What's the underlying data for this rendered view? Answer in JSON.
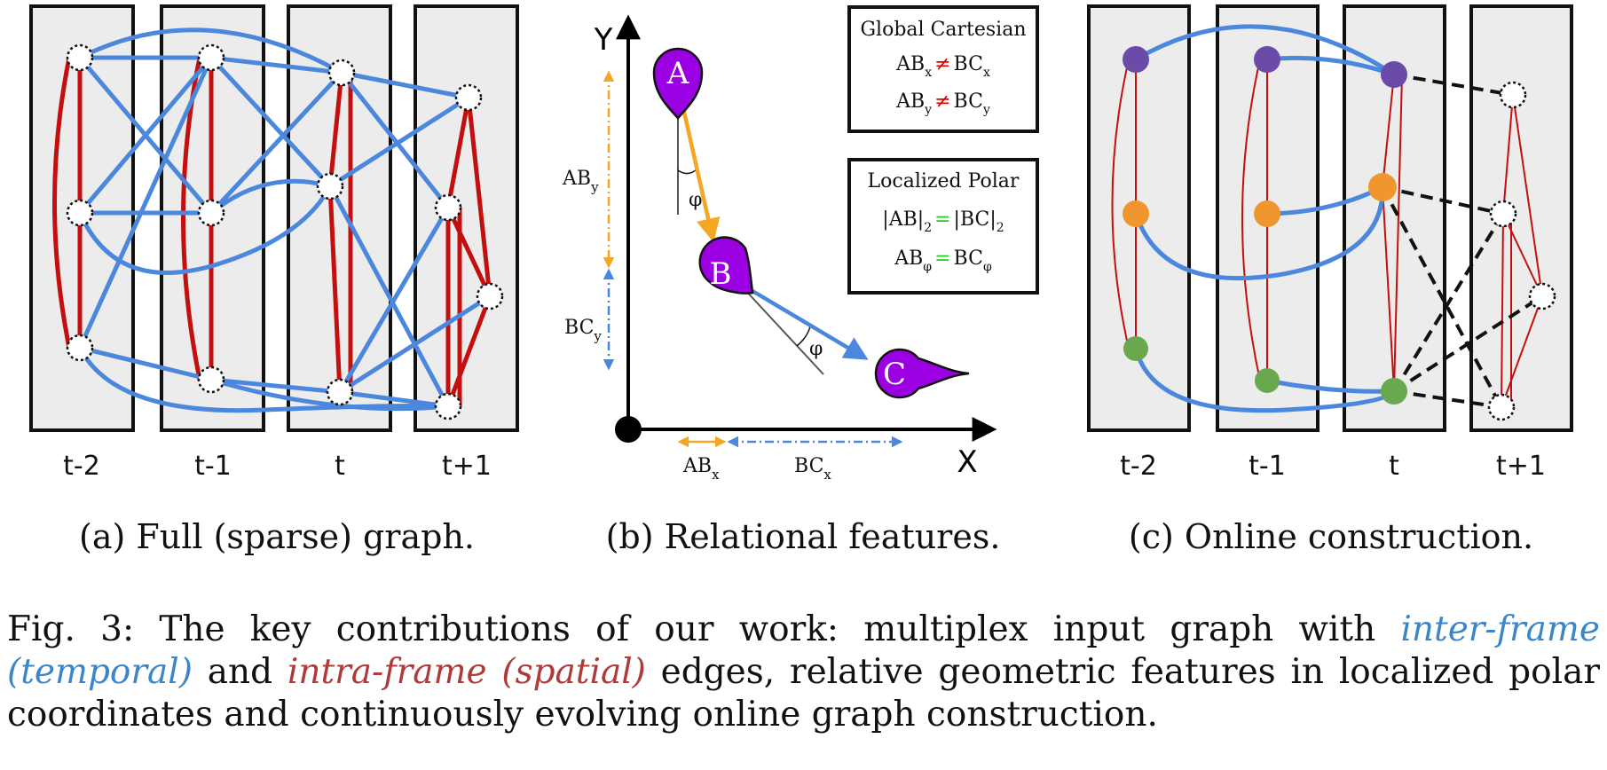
{
  "colors": {
    "temporal_edge": "#4a87dd",
    "spatial_edge": "#c40f0f",
    "frame_fill": "#ececec",
    "node_purple": "#6a4ba8",
    "node_orange": "#f0962e",
    "node_green": "#6aa84f",
    "pin_fill": "#9b00e3",
    "arrow_ab": "#f5a623",
    "arrow_bc": "#4a87dd",
    "neq_mark": "#e00000",
    "eq_mark": "#22cc22"
  },
  "panels": {
    "a": {
      "frame_labels": [
        "t-2",
        "t-1",
        "t",
        "t+1"
      ],
      "subcaption": "(a) Full (sparse) graph."
    },
    "b": {
      "axis_y": "Y",
      "axis_x": "X",
      "pins": [
        "A",
        "B",
        "C"
      ],
      "angle": "φ",
      "ab_y": {
        "base": "AB",
        "sub": "y"
      },
      "bc_y": {
        "base": "BC",
        "sub": "y"
      },
      "ab_x": {
        "base": "AB",
        "sub": "x"
      },
      "bc_x": {
        "base": "BC",
        "sub": "x"
      },
      "box1": {
        "title": "Global Cartesian",
        "row1": {
          "lhs": "AB",
          "lhs_sub": "x",
          "op": "≠",
          "rhs": "BC",
          "rhs_sub": "x"
        },
        "row2": {
          "lhs": "AB",
          "lhs_sub": "y",
          "op": "≠",
          "rhs": "BC",
          "rhs_sub": "y"
        }
      },
      "box2": {
        "title": "Localized Polar",
        "row1": {
          "lhs": "|AB|",
          "lhs_sub": "2",
          "op": "=",
          "rhs": "|BC|",
          "rhs_sub": "2"
        },
        "row2": {
          "lhs": "AB",
          "lhs_sub": "φ",
          "op": "=",
          "rhs": "BC",
          "rhs_sub": "φ"
        }
      },
      "subcaption": "(b) Relational features."
    },
    "c": {
      "frame_labels": [
        "t-2",
        "t-1",
        "t",
        "t+1"
      ],
      "subcaption": "(c) Online construction."
    }
  },
  "caption": {
    "prefix": "Fig. 3: The key contributions of our work: multiplex input graph with ",
    "inter": "inter-frame (temporal)",
    "mid1": " and ",
    "intra": "intra-frame (spatial)",
    "suffix": " edges, relative geometric features in localized polar coordinates and continuously evolving online graph construction."
  }
}
